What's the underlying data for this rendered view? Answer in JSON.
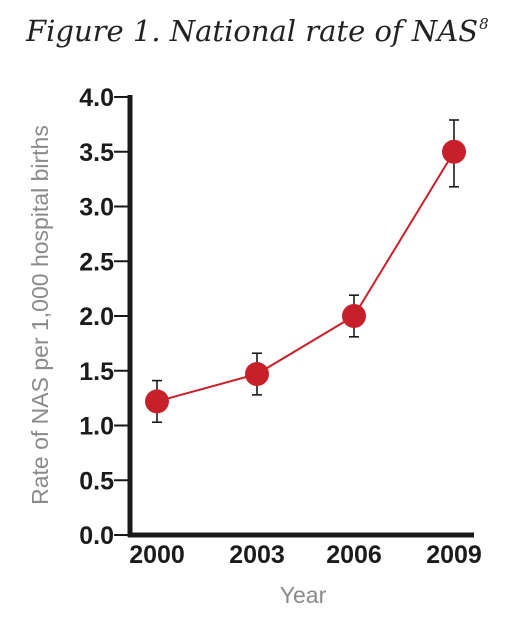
{
  "title": "Figure 1.  National rate of NAS",
  "title_footnote": "8",
  "chart_data": {
    "type": "line",
    "title": "Figure 1.  National rate of NAS",
    "xlabel": "Year",
    "ylabel": "Rate of NAS per 1,000 hospital births",
    "categories": [
      "2000",
      "2003",
      "2006",
      "2009"
    ],
    "series": [
      {
        "values": [
          1.22,
          1.47,
          2.0,
          3.5
        ],
        "error_low": [
          1.03,
          1.28,
          1.81,
          3.18
        ],
        "error_high": [
          1.41,
          1.66,
          2.19,
          3.79
        ]
      }
    ],
    "ylim": [
      0,
      4
    ],
    "yticks": [
      "0.0",
      "0.5",
      "1.0",
      "1.5",
      "2.0",
      "2.5",
      "3.0",
      "3.5",
      "4.0"
    ],
    "grid": false,
    "legend": "none",
    "colors": {
      "line": "#c8202a",
      "marker": "#c8202a",
      "error": "#1a1a1a",
      "axis": "#1a1a1a"
    }
  }
}
